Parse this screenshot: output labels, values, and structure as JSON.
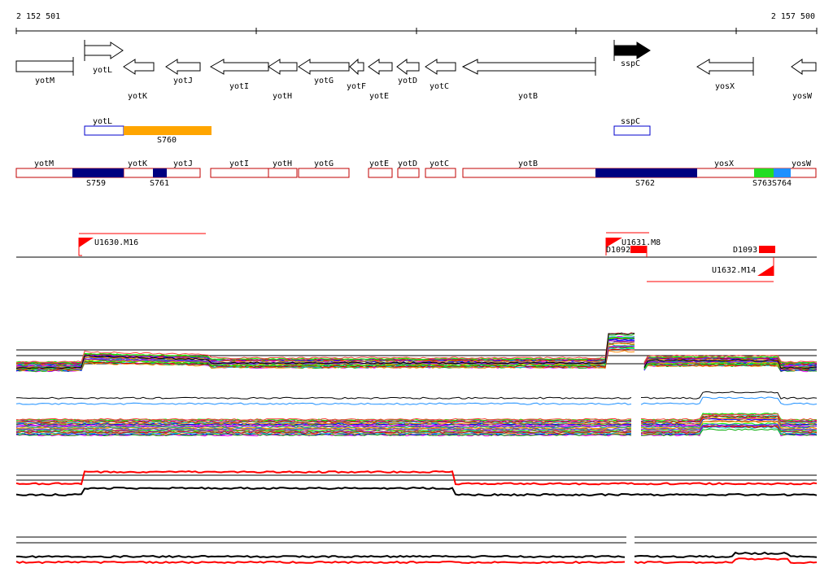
{
  "coords": {
    "start": "2 152 501",
    "end": "2 157 500"
  },
  "axis": {
    "min": 2152501,
    "max": 2157500
  },
  "colors": {
    "feature_outline": "#c00000",
    "segment_navy": "#000080",
    "segment_orange": "#ffa500",
    "segment_green": "#22dd22",
    "segment_blue": "#1e90ff",
    "blue_outline": "#0000cc",
    "red": "#ff0000"
  },
  "genes": [
    {
      "name": "yotM",
      "dir": "-",
      "filled": false
    },
    {
      "name": "yotL",
      "dir": "+",
      "filled": false
    },
    {
      "name": "yotK",
      "dir": "-",
      "filled": false
    },
    {
      "name": "yotJ",
      "dir": "-",
      "filled": false
    },
    {
      "name": "yotI",
      "dir": "-",
      "filled": false
    },
    {
      "name": "yotH",
      "dir": "-",
      "filled": false
    },
    {
      "name": "yotG",
      "dir": "-",
      "filled": false
    },
    {
      "name": "yotF",
      "dir": "-",
      "filled": false
    },
    {
      "name": "yotE",
      "dir": "-",
      "filled": false
    },
    {
      "name": "yotD",
      "dir": "-",
      "filled": false
    },
    {
      "name": "yotC",
      "dir": "-",
      "filled": false
    },
    {
      "name": "yotB",
      "dir": "-",
      "filled": false
    },
    {
      "name": "sspC",
      "dir": "+",
      "filled": true
    },
    {
      "name": "yosX",
      "dir": "-",
      "filled": false
    },
    {
      "name": "yosW",
      "dir": "-",
      "filled": false
    }
  ],
  "plus_transcripts": [
    {
      "gene": "yotL",
      "segment": "S760"
    },
    {
      "gene": "sspC"
    }
  ],
  "minus_transcripts": {
    "genes": [
      "yotM",
      "yotK",
      "yotJ",
      "yotI",
      "yotH",
      "yotG",
      "yotE",
      "yotD",
      "yotC",
      "yotB",
      "yosX",
      "yosW"
    ],
    "segments": [
      "S759",
      "S761",
      "S762",
      "S763",
      "S764"
    ]
  },
  "promoters": [
    "U1630.M16",
    "U1631.M8",
    "D1092",
    "D1093",
    "U1632.M14"
  ]
}
